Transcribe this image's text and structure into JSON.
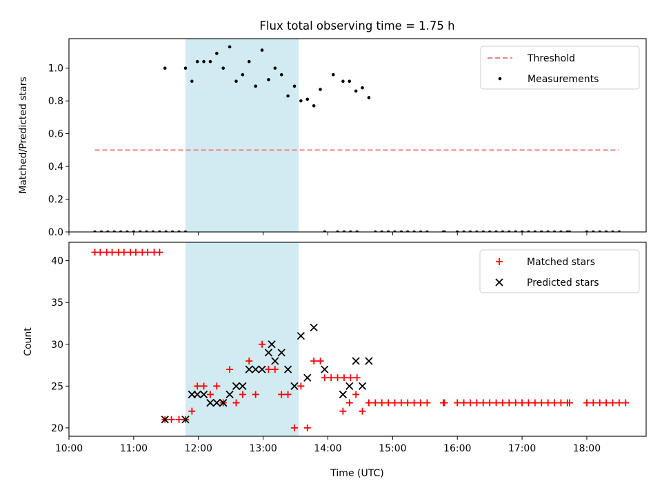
{
  "chart_data": [
    {
      "type": "scatter",
      "title": "Flux total observing time = 1.75 h",
      "ylabel": "Matched/Predicted stars",
      "xlabel": "",
      "xlim": [
        "10:00",
        "18:55"
      ],
      "ylim": [
        0,
        1.18
      ],
      "yticks": [
        "0.0",
        "0.2",
        "0.4",
        "0.6",
        "0.8",
        "1.0"
      ],
      "shaded_interval": [
        "11:48",
        "13:33"
      ],
      "legend_position": "top-right",
      "series": [
        {
          "name": "Threshold",
          "kind": "dashed-line",
          "color": "#f08080",
          "x": [
            "10:24",
            "18:30"
          ],
          "y": [
            0.5,
            0.5
          ]
        },
        {
          "name": "Measurements",
          "kind": "dot",
          "color": "#000000",
          "points": [
            [
              "10:24",
              0
            ],
            [
              "10:30",
              0
            ],
            [
              "10:36",
              0
            ],
            [
              "10:42",
              0
            ],
            [
              "10:48",
              0
            ],
            [
              "10:54",
              0
            ],
            [
              "11:00",
              0
            ],
            [
              "11:06",
              0
            ],
            [
              "11:12",
              0
            ],
            [
              "11:18",
              0
            ],
            [
              "11:24",
              0
            ],
            [
              "11:30",
              0
            ],
            [
              "11:29",
              1.0
            ],
            [
              "11:36",
              0
            ],
            [
              "11:42",
              0
            ],
            [
              "11:48",
              0
            ],
            [
              "11:48",
              1.0
            ],
            [
              "11:54",
              0.92
            ],
            [
              "11:59",
              1.04
            ],
            [
              "12:05",
              1.04
            ],
            [
              "12:11",
              1.04
            ],
            [
              "12:17",
              1.09
            ],
            [
              "12:23",
              1.0
            ],
            [
              "12:29",
              1.13
            ],
            [
              "12:35",
              0.92
            ],
            [
              "12:41",
              0.96
            ],
            [
              "12:47",
              1.04
            ],
            [
              "12:53",
              0.89
            ],
            [
              "12:59",
              1.11
            ],
            [
              "13:05",
              0.93
            ],
            [
              "13:11",
              1.0
            ],
            [
              "13:17",
              0.96
            ],
            [
              "13:23",
              0.83
            ],
            [
              "13:29",
              0.89
            ],
            [
              "13:35",
              0.8
            ],
            [
              "13:41",
              0.81
            ],
            [
              "13:47",
              0.77
            ],
            [
              "13:53",
              0.87
            ],
            [
              "14:05",
              0.96
            ],
            [
              "13:57",
              0
            ],
            [
              "14:09",
              0
            ],
            [
              "14:15",
              0
            ],
            [
              "14:21",
              0
            ],
            [
              "14:27",
              0
            ],
            [
              "14:14",
              0.92
            ],
            [
              "14:20",
              0.92
            ],
            [
              "14:26",
              0.86
            ],
            [
              "14:32",
              0.88
            ],
            [
              "14:38",
              0.82
            ],
            [
              "14:44",
              0
            ],
            [
              "14:50",
              0
            ],
            [
              "14:56",
              0
            ],
            [
              "15:02",
              0
            ],
            [
              "15:08",
              0
            ],
            [
              "15:14",
              0
            ],
            [
              "15:20",
              0
            ],
            [
              "15:26",
              0
            ],
            [
              "15:32",
              0
            ],
            [
              "15:47",
              0
            ],
            [
              "15:48",
              0
            ],
            [
              "16:00",
              0
            ],
            [
              "16:06",
              0
            ],
            [
              "16:12",
              0
            ],
            [
              "16:18",
              0
            ],
            [
              "16:24",
              0
            ],
            [
              "16:30",
              0
            ],
            [
              "16:36",
              0
            ],
            [
              "16:42",
              0
            ],
            [
              "16:48",
              0
            ],
            [
              "16:54",
              0
            ],
            [
              "17:00",
              0
            ],
            [
              "17:06",
              0
            ],
            [
              "17:12",
              0
            ],
            [
              "17:18",
              0
            ],
            [
              "17:24",
              0
            ],
            [
              "17:30",
              0
            ],
            [
              "17:36",
              0
            ],
            [
              "17:42",
              0
            ],
            [
              "17:44",
              0
            ],
            [
              "18:00",
              0
            ],
            [
              "18:06",
              0
            ],
            [
              "18:12",
              0
            ],
            [
              "18:18",
              0
            ],
            [
              "18:24",
              0
            ],
            [
              "18:30",
              0
            ]
          ]
        }
      ]
    },
    {
      "type": "scatter",
      "title": "",
      "xlabel": "Time (UTC)",
      "ylabel": "Count",
      "xticks": [
        "10:00",
        "11:00",
        "12:00",
        "13:00",
        "14:00",
        "15:00",
        "16:00",
        "17:00",
        "18:00"
      ],
      "xlim": [
        "10:00",
        "18:55"
      ],
      "ylim": [
        19,
        42.2
      ],
      "yticks": [
        "20",
        "25",
        "30",
        "35",
        "40"
      ],
      "shaded_interval": [
        "11:48",
        "13:33"
      ],
      "legend_position": "top-right",
      "series": [
        {
          "name": "Matched stars",
          "marker": "plus",
          "color": "#ff0000",
          "points": [
            [
              "10:24",
              41
            ],
            [
              "10:29",
              41
            ],
            [
              "10:35",
              41
            ],
            [
              "10:40",
              41
            ],
            [
              "10:46",
              41
            ],
            [
              "10:51",
              41
            ],
            [
              "10:57",
              41
            ],
            [
              "11:02",
              41
            ],
            [
              "11:08",
              41
            ],
            [
              "11:13",
              41
            ],
            [
              "11:19",
              41
            ],
            [
              "11:24",
              41
            ],
            [
              "11:29",
              21
            ],
            [
              "11:35",
              21
            ],
            [
              "11:42",
              21
            ],
            [
              "11:48",
              21
            ],
            [
              "11:54",
              22
            ],
            [
              "11:59",
              25
            ],
            [
              "12:05",
              25
            ],
            [
              "12:11",
              24
            ],
            [
              "12:17",
              25
            ],
            [
              "12:23",
              23
            ],
            [
              "12:29",
              27
            ],
            [
              "12:35",
              23
            ],
            [
              "12:41",
              24
            ],
            [
              "12:47",
              28
            ],
            [
              "12:53",
              24
            ],
            [
              "12:59",
              30
            ],
            [
              "13:05",
              27
            ],
            [
              "13:11",
              27
            ],
            [
              "13:17",
              24
            ],
            [
              "13:23",
              24
            ],
            [
              "13:29",
              20
            ],
            [
              "13:35",
              25
            ],
            [
              "13:41",
              20
            ],
            [
              "13:47",
              28
            ],
            [
              "13:53",
              28
            ],
            [
              "13:57",
              26
            ],
            [
              "14:03",
              26
            ],
            [
              "14:09",
              26
            ],
            [
              "14:15",
              26
            ],
            [
              "14:21",
              26
            ],
            [
              "14:27",
              26
            ],
            [
              "14:14",
              22
            ],
            [
              "14:20",
              23
            ],
            [
              "14:26",
              24
            ],
            [
              "14:32",
              22
            ],
            [
              "14:38",
              23
            ],
            [
              "14:44",
              23
            ],
            [
              "14:50",
              23
            ],
            [
              "14:56",
              23
            ],
            [
              "15:02",
              23
            ],
            [
              "15:08",
              23
            ],
            [
              "15:14",
              23
            ],
            [
              "15:20",
              23
            ],
            [
              "15:26",
              23
            ],
            [
              "15:32",
              23
            ],
            [
              "15:47",
              23
            ],
            [
              "15:48",
              23
            ],
            [
              "16:00",
              23
            ],
            [
              "16:06",
              23
            ],
            [
              "16:12",
              23
            ],
            [
              "16:18",
              23
            ],
            [
              "16:24",
              23
            ],
            [
              "16:30",
              23
            ],
            [
              "16:36",
              23
            ],
            [
              "16:42",
              23
            ],
            [
              "16:48",
              23
            ],
            [
              "16:54",
              23
            ],
            [
              "17:00",
              23
            ],
            [
              "17:06",
              23
            ],
            [
              "17:12",
              23
            ],
            [
              "17:18",
              23
            ],
            [
              "17:24",
              23
            ],
            [
              "17:30",
              23
            ],
            [
              "17:36",
              23
            ],
            [
              "17:42",
              23
            ],
            [
              "17:44",
              23
            ],
            [
              "18:00",
              23
            ],
            [
              "18:06",
              23
            ],
            [
              "18:12",
              23
            ],
            [
              "18:18",
              23
            ],
            [
              "18:24",
              23
            ],
            [
              "18:30",
              23
            ],
            [
              "18:36",
              23
            ]
          ]
        },
        {
          "name": "Predicted stars",
          "marker": "x",
          "color": "#000000",
          "points": [
            [
              "11:29",
              21
            ],
            [
              "11:48",
              21
            ],
            [
              "11:54",
              24
            ],
            [
              "11:59",
              24
            ],
            [
              "12:05",
              24
            ],
            [
              "12:11",
              23
            ],
            [
              "12:17",
              23
            ],
            [
              "12:23",
              23
            ],
            [
              "12:29",
              24
            ],
            [
              "12:35",
              25
            ],
            [
              "12:41",
              25
            ],
            [
              "12:47",
              27
            ],
            [
              "12:53",
              27
            ],
            [
              "12:59",
              27
            ],
            [
              "13:05",
              29
            ],
            [
              "13:08",
              30
            ],
            [
              "13:11",
              28
            ],
            [
              "13:17",
              29
            ],
            [
              "13:23",
              27
            ],
            [
              "13:29",
              25
            ],
            [
              "13:35",
              31
            ],
            [
              "13:41",
              26
            ],
            [
              "13:47",
              32
            ],
            [
              "13:57",
              27
            ],
            [
              "14:14",
              24
            ],
            [
              "14:20",
              25
            ],
            [
              "14:26",
              28
            ],
            [
              "14:32",
              25
            ],
            [
              "14:38",
              28
            ]
          ]
        }
      ]
    }
  ]
}
